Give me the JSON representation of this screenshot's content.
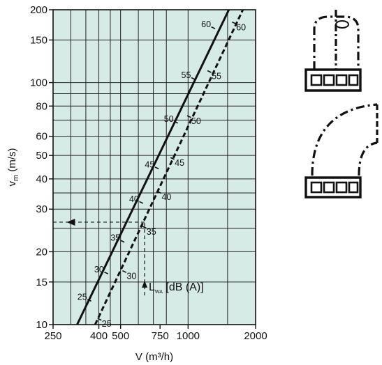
{
  "chart_data": {
    "type": "line",
    "x_scale": "log",
    "y_scale": "log",
    "xlim": [
      250,
      2000
    ],
    "ylim": [
      10,
      200
    ],
    "xlabel": "V (m³/h)",
    "ylabel_main": "v",
    "ylabel_sub": "m",
    "ylabel_unit": " (m/s)",
    "x_ticks": [
      {
        "value": 250,
        "label": "250"
      },
      {
        "value": 400,
        "label": "400"
      },
      {
        "value": 500,
        "label": "500"
      },
      {
        "value": 750,
        "label": "750"
      },
      {
        "value": 1000,
        "label": "1000"
      },
      {
        "value": 2000,
        "label": "2000"
      }
    ],
    "y_ticks": [
      {
        "value": 10,
        "label": "10"
      },
      {
        "value": 15,
        "label": "15"
      },
      {
        "value": 20,
        "label": "20"
      },
      {
        "value": 30,
        "label": "30"
      },
      {
        "value": 40,
        "label": "40"
      },
      {
        "value": 50,
        "label": "50"
      },
      {
        "value": 60,
        "label": "60"
      },
      {
        "value": 80,
        "label": "80"
      },
      {
        "value": 100,
        "label": "100"
      },
      {
        "value": 150,
        "label": "150"
      },
      {
        "value": 200,
        "label": "200"
      }
    ],
    "x_gridlines": [
      300,
      350,
      400,
      450,
      500,
      600,
      700,
      800,
      1000,
      1500
    ],
    "y_gridlines": [
      15,
      20,
      25,
      30,
      35,
      40,
      50,
      60,
      70,
      80,
      90,
      100,
      150
    ],
    "series": [
      {
        "style": "solid",
        "x": [
          320,
          1520
        ],
        "y": [
          10,
          200
        ],
        "level_marks": [
          {
            "label": "25",
            "x": 370,
            "y": 12.5
          },
          {
            "label": "30",
            "x": 440,
            "y": 16.2
          },
          {
            "label": "35",
            "x": 520,
            "y": 21.9
          },
          {
            "label": "40",
            "x": 630,
            "y": 31.7
          },
          {
            "label": "45",
            "x": 740,
            "y": 44.0
          },
          {
            "label": "50",
            "x": 900,
            "y": 68.0
          },
          {
            "label": "55",
            "x": 1075,
            "y": 103.0
          },
          {
            "label": "60",
            "x": 1320,
            "y": 167.0
          }
        ]
      },
      {
        "style": "dashed",
        "x": [
          385,
          1755
        ],
        "y": [
          10,
          200
        ],
        "level_marks": [
          {
            "label": "25",
            "x": 395,
            "y": 10.6
          },
          {
            "label": "30",
            "x": 510,
            "y": 16.7
          },
          {
            "label": "35",
            "x": 625,
            "y": 25.5
          },
          {
            "label": "40",
            "x": 730,
            "y": 35.5
          },
          {
            "label": "45",
            "x": 835,
            "y": 49.0
          },
          {
            "label": "50",
            "x": 990,
            "y": 73.0
          },
          {
            "label": "55",
            "x": 1220,
            "y": 112.0
          },
          {
            "label": "60",
            "x": 1570,
            "y": 178.0
          }
        ]
      }
    ],
    "reference": {
      "x": 640,
      "y": 26.5,
      "arrow_start_y": 13.2,
      "arrow_end_y": 14.6,
      "left_arrow_x": 300,
      "left_end_x": 250
    },
    "annotation": {
      "x": 660,
      "y": 14.6,
      "main": "L",
      "sub": "WA",
      "rest": " [dB (A)]"
    }
  },
  "diagram_icons": [
    {
      "name": "straight-outlet-diagram-icon"
    },
    {
      "name": "elbow-outlet-diagram-icon"
    }
  ],
  "colors": {
    "plot_bg": "#d7ebe6",
    "grid": "#222222",
    "line": "#111111"
  }
}
